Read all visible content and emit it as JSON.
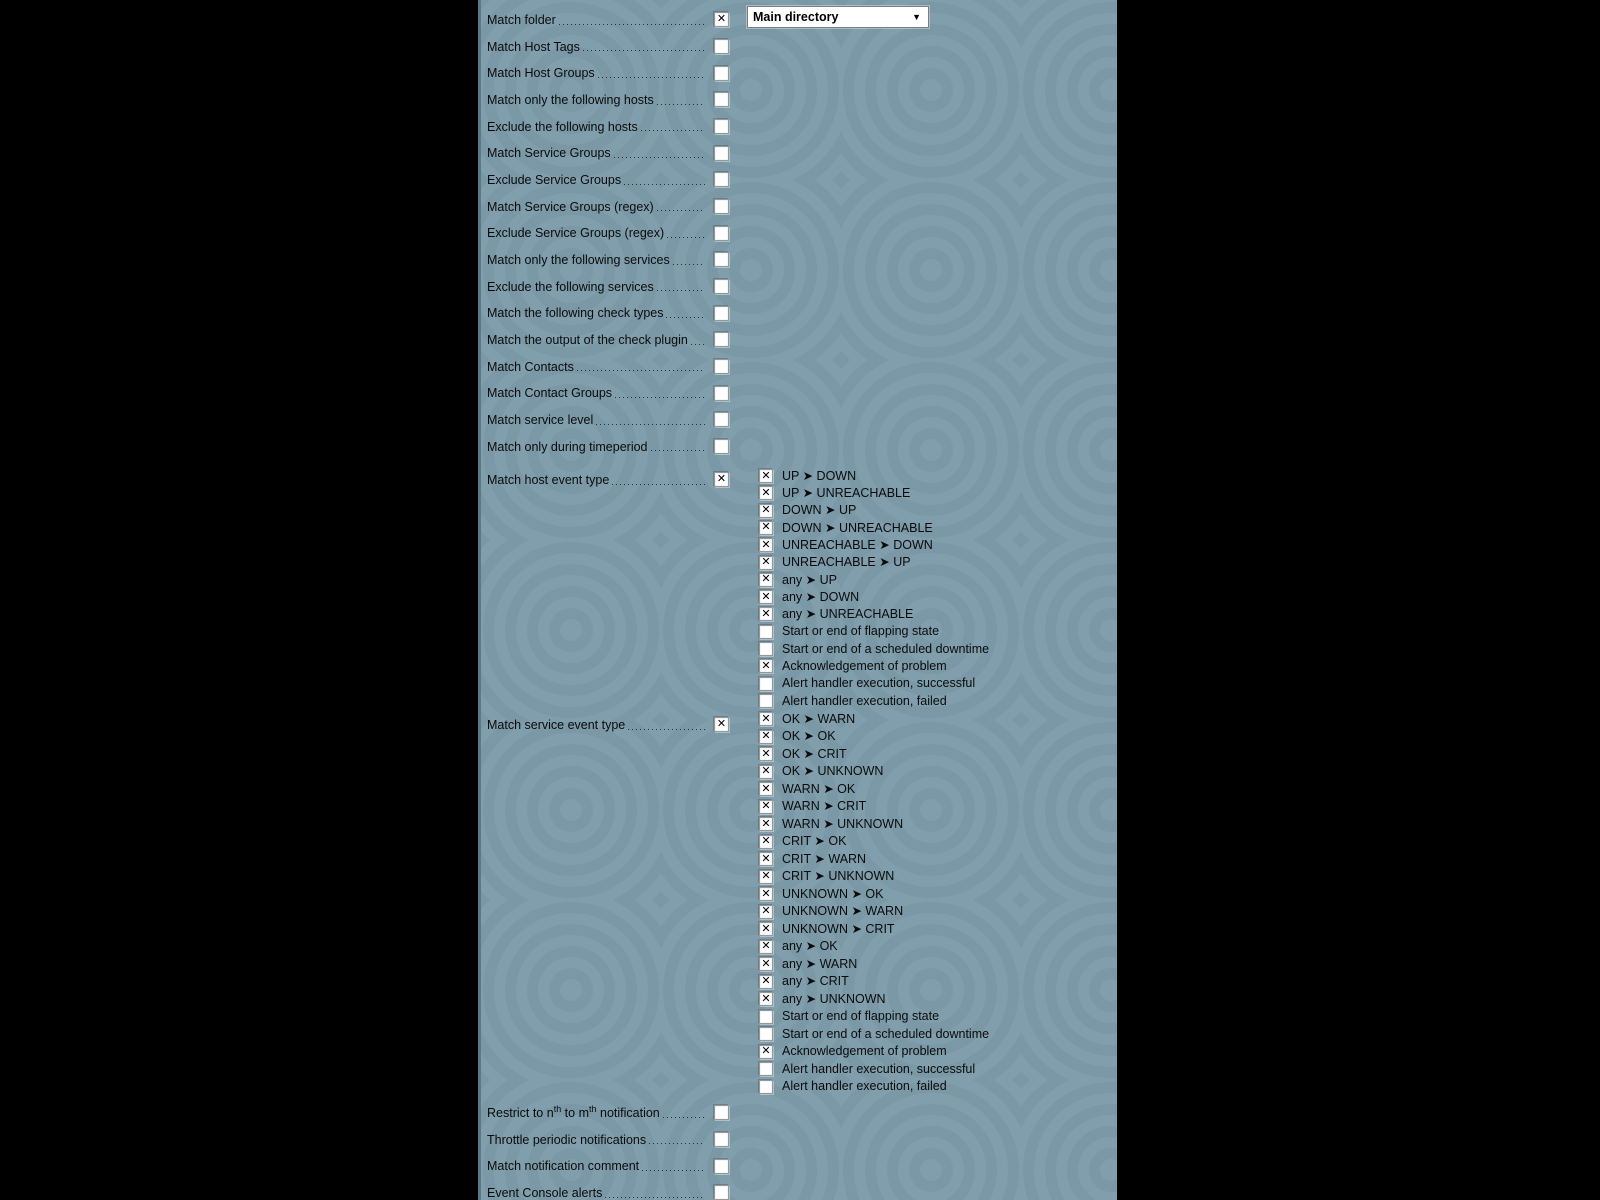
{
  "colors": {
    "page_background": "#000000",
    "panel_background": "#7d9caa",
    "panel_edge": "#597989",
    "text": "#0b0b0b",
    "checkbox_background": "#ffffff"
  },
  "icons": {
    "checkbox_mark": "✕",
    "dropdown_arrow": "▼"
  },
  "form": {
    "folder_select": {
      "value": "Main directory"
    },
    "rows_top": [
      {
        "label": "Match folder",
        "checked": true,
        "control": "folder_select"
      },
      {
        "label": "Match Host Tags",
        "checked": false
      },
      {
        "label": "Match Host Groups",
        "checked": false
      },
      {
        "label": "Match only the following hosts",
        "checked": false
      },
      {
        "label": "Exclude the following hosts",
        "checked": false
      },
      {
        "label": "Match Service Groups",
        "checked": false
      },
      {
        "label": "Exclude Service Groups",
        "checked": false
      },
      {
        "label": "Match Service Groups (regex)",
        "checked": false
      },
      {
        "label": "Exclude Service Groups (regex)",
        "checked": false
      },
      {
        "label": "Match only the following services",
        "checked": false
      },
      {
        "label": "Exclude the following services",
        "checked": false
      },
      {
        "label": "Match the following check types",
        "checked": false
      },
      {
        "label": "Match the output of the check plugin",
        "checked": false
      },
      {
        "label": "Match Contacts",
        "checked": false
      },
      {
        "label": "Match Contact Groups",
        "checked": false
      },
      {
        "label": "Match service level",
        "checked": false
      },
      {
        "label": "Match only during timeperiod",
        "checked": false
      }
    ],
    "host_event_type": {
      "label": "Match host event type",
      "checked": true,
      "options": [
        {
          "label": "UP ➤ DOWN",
          "checked": true
        },
        {
          "label": "UP ➤ UNREACHABLE",
          "checked": true
        },
        {
          "label": "DOWN ➤ UP",
          "checked": true
        },
        {
          "label": "DOWN ➤ UNREACHABLE",
          "checked": true
        },
        {
          "label": "UNREACHABLE ➤ DOWN",
          "checked": true
        },
        {
          "label": "UNREACHABLE ➤ UP",
          "checked": true
        },
        {
          "label": "any ➤ UP",
          "checked": true
        },
        {
          "label": "any ➤ DOWN",
          "checked": true
        },
        {
          "label": "any ➤ UNREACHABLE",
          "checked": true
        },
        {
          "label": "Start or end of flapping state",
          "checked": false
        },
        {
          "label": "Start or end of a scheduled downtime",
          "checked": false
        },
        {
          "label": "Acknowledgement of problem",
          "checked": true
        },
        {
          "label": "Alert handler execution, successful",
          "checked": false
        },
        {
          "label": "Alert handler execution, failed",
          "checked": false
        }
      ]
    },
    "service_event_type": {
      "label": "Match service event type",
      "checked": true,
      "options": [
        {
          "label": "OK ➤ WARN",
          "checked": true
        },
        {
          "label": "OK ➤ OK",
          "checked": true
        },
        {
          "label": "OK ➤ CRIT",
          "checked": true
        },
        {
          "label": "OK ➤ UNKNOWN",
          "checked": true
        },
        {
          "label": "WARN ➤ OK",
          "checked": true
        },
        {
          "label": "WARN ➤ CRIT",
          "checked": true
        },
        {
          "label": "WARN ➤ UNKNOWN",
          "checked": true
        },
        {
          "label": "CRIT ➤ OK",
          "checked": true
        },
        {
          "label": "CRIT ➤ WARN",
          "checked": true
        },
        {
          "label": "CRIT ➤ UNKNOWN",
          "checked": true
        },
        {
          "label": "UNKNOWN ➤ OK",
          "checked": true
        },
        {
          "label": "UNKNOWN ➤ WARN",
          "checked": true
        },
        {
          "label": "UNKNOWN ➤ CRIT",
          "checked": true
        },
        {
          "label": "any ➤ OK",
          "checked": true
        },
        {
          "label": "any ➤ WARN",
          "checked": true
        },
        {
          "label": "any ➤ CRIT",
          "checked": true
        },
        {
          "label": "any ➤ UNKNOWN",
          "checked": true
        },
        {
          "label": "Start or end of flapping state",
          "checked": false
        },
        {
          "label": "Start or end of a scheduled downtime",
          "checked": false
        },
        {
          "label": "Acknowledgement of problem",
          "checked": true
        },
        {
          "label": "Alert handler execution, successful",
          "checked": false
        },
        {
          "label": "Alert handler execution, failed",
          "checked": false
        }
      ]
    },
    "rows_bottom": [
      {
        "label_parts": [
          {
            "text": "Restrict to n"
          },
          {
            "text": "th",
            "sup": true
          },
          {
            "text": " to m"
          },
          {
            "text": "th",
            "sup": true
          },
          {
            "text": " notification"
          }
        ],
        "checked": false,
        "name": "restrict-nth-mth-notification"
      },
      {
        "label": "Throttle periodic notifications",
        "checked": false
      },
      {
        "label": "Match notification comment",
        "checked": false
      },
      {
        "label": "Event Console alerts",
        "checked": false
      }
    ]
  }
}
